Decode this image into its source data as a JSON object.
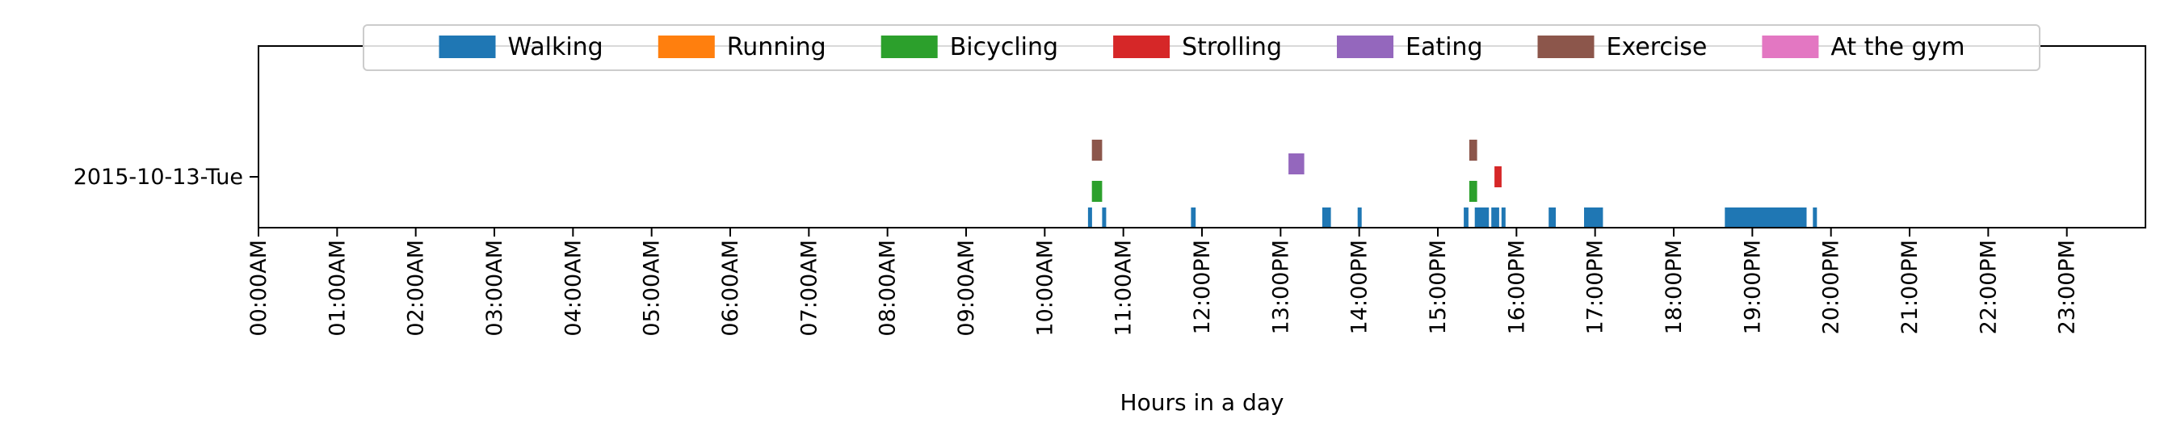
{
  "chart_data": {
    "type": "timeline",
    "title": "",
    "xlabel": "Hours in a day",
    "ylabel": "",
    "y_category": "2015-10-13-Tue",
    "xlim": [
      0,
      24
    ],
    "x_ticks": [
      {
        "hour": 0,
        "label": "00:00AM"
      },
      {
        "hour": 1,
        "label": "01:00AM"
      },
      {
        "hour": 2,
        "label": "02:00AM"
      },
      {
        "hour": 3,
        "label": "03:00AM"
      },
      {
        "hour": 4,
        "label": "04:00AM"
      },
      {
        "hour": 5,
        "label": "05:00AM"
      },
      {
        "hour": 6,
        "label": "06:00AM"
      },
      {
        "hour": 7,
        "label": "07:00AM"
      },
      {
        "hour": 8,
        "label": "08:00AM"
      },
      {
        "hour": 9,
        "label": "09:00AM"
      },
      {
        "hour": 10,
        "label": "10:00AM"
      },
      {
        "hour": 11,
        "label": "11:00AM"
      },
      {
        "hour": 12,
        "label": "12:00PM"
      },
      {
        "hour": 13,
        "label": "13:00PM"
      },
      {
        "hour": 14,
        "label": "14:00PM"
      },
      {
        "hour": 15,
        "label": "15:00PM"
      },
      {
        "hour": 16,
        "label": "16:00PM"
      },
      {
        "hour": 17,
        "label": "17:00PM"
      },
      {
        "hour": 18,
        "label": "18:00PM"
      },
      {
        "hour": 19,
        "label": "19:00PM"
      },
      {
        "hour": 20,
        "label": "20:00PM"
      },
      {
        "hour": 21,
        "label": "21:00PM"
      },
      {
        "hour": 22,
        "label": "22:00PM"
      },
      {
        "hour": 23,
        "label": "23:00PM"
      }
    ],
    "legend": {
      "placement": "top-center",
      "entries": [
        {
          "name": "Walking",
          "color": "#1f77b4"
        },
        {
          "name": "Running",
          "color": "#ff7f0e"
        },
        {
          "name": "Bicycling",
          "color": "#2ca02c"
        },
        {
          "name": "Strolling",
          "color": "#d62728"
        },
        {
          "name": "Eating",
          "color": "#9467bd"
        },
        {
          "name": "Exercise",
          "color": "#8c564b"
        },
        {
          "name": "At the gym",
          "color": "#e377c2"
        }
      ]
    },
    "series": [
      {
        "name": "Walking",
        "color": "#1f77b4",
        "lane": 0,
        "intervals": [
          [
            10.55,
            10.59
          ],
          [
            10.73,
            10.78
          ],
          [
            11.86,
            11.92
          ],
          [
            13.53,
            13.64
          ],
          [
            13.98,
            14.02
          ],
          [
            15.33,
            15.39
          ],
          [
            15.47,
            15.65
          ],
          [
            15.68,
            15.78
          ],
          [
            15.81,
            15.85
          ],
          [
            16.41,
            16.5
          ],
          [
            16.86,
            17.1
          ],
          [
            18.65,
            19.69
          ],
          [
            19.77,
            19.81
          ]
        ]
      },
      {
        "name": "Bicycling",
        "color": "#2ca02c",
        "lane": 1,
        "intervals": [
          [
            10.6,
            10.73
          ],
          [
            15.4,
            15.5
          ]
        ]
      },
      {
        "name": "Strolling",
        "color": "#d62728",
        "lane": 2,
        "intervals": [
          [
            15.72,
            15.81
          ]
        ]
      },
      {
        "name": "Eating",
        "color": "#9467bd",
        "lane": 3,
        "intervals": [
          [
            13.1,
            13.3
          ]
        ]
      },
      {
        "name": "Exercise",
        "color": "#8c564b",
        "lane": 4,
        "intervals": [
          [
            10.6,
            10.73
          ],
          [
            15.4,
            15.5
          ]
        ]
      }
    ]
  }
}
